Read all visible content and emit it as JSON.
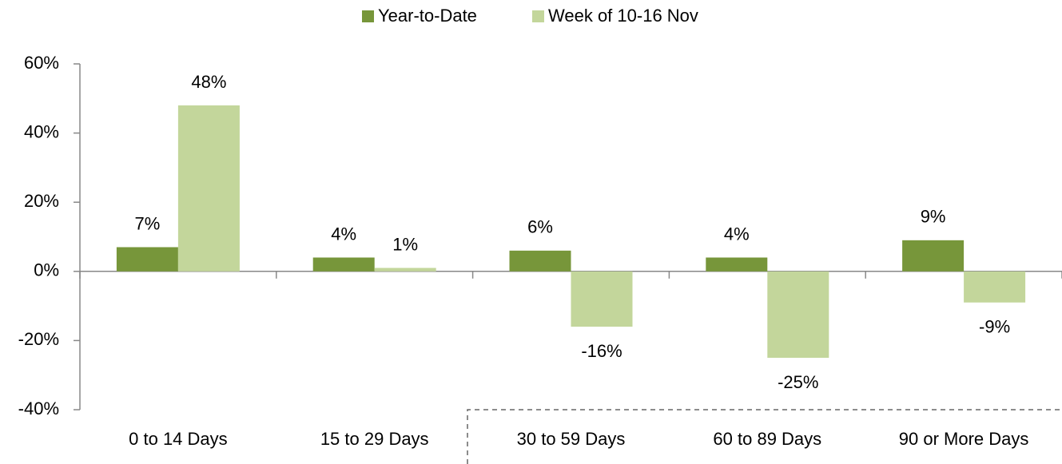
{
  "chart_data": {
    "type": "bar",
    "categories": [
      "0 to 14 Days",
      "15  to 29 Days",
      "30 to 59 Days",
      "60 to 89 Days",
      "90 or More Days"
    ],
    "series": [
      {
        "name": "Year-to-Date",
        "color": "#77963a",
        "values": [
          7,
          4,
          6,
          4,
          9
        ],
        "value_labels": [
          "7%",
          "4%",
          "6%",
          "4%",
          "9%"
        ]
      },
      {
        "name": "Week of 10-16 Nov",
        "color": "#c3d69b",
        "values": [
          48,
          1,
          -16,
          -25,
          -9
        ],
        "value_labels": [
          "48%",
          "1%",
          "-16%",
          "-25%",
          "-9%"
        ]
      }
    ],
    "ylim": [
      -40,
      60
    ],
    "yticks": [
      {
        "value": -40,
        "label": "-40%"
      },
      {
        "value": -20,
        "label": "-20%"
      },
      {
        "value": 0,
        "label": "0%"
      },
      {
        "value": 20,
        "label": "20%"
      },
      {
        "value": 40,
        "label": "40%"
      },
      {
        "value": 60,
        "label": "60%"
      }
    ],
    "grid": false,
    "legend": "top"
  }
}
